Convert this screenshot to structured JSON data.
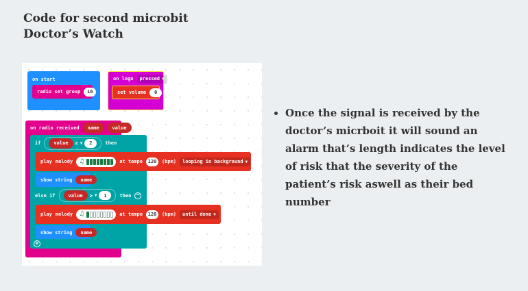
{
  "title": {
    "line1": "Code for second microbit",
    "line2": "Doctor’s Watch"
  },
  "blocks": {
    "on_start": {
      "label": "on start",
      "radio_label": "radio set group",
      "radio_value": "16"
    },
    "on_logo": {
      "label": "on logo",
      "event": "pressed",
      "set_volume_label": "set volume",
      "volume_value": "0"
    },
    "on_radio": {
      "label": "on radio received",
      "param1": "name",
      "param2": "value",
      "if_label": "if",
      "if_var": "value",
      "if_op": "≥",
      "if_value": "2",
      "then_label": "then",
      "play1": {
        "label": "play",
        "melody_label": "melody",
        "tempo_label": "at tempo",
        "tempo_value": "120",
        "bpm_label": "(bpm)",
        "mode": "looping in background",
        "filled_cells": 8,
        "total_cells": 8
      },
      "show1_label": "show string",
      "show1_value": "name",
      "elseif_label": "else if",
      "elseif_var": "value",
      "elseif_op": "≥",
      "elseif_value": "1",
      "then2_label": "then",
      "play2": {
        "label": "play",
        "melody_label": "melody",
        "tempo_label": "at tempo",
        "tempo_value": "120",
        "bpm_label": "(bpm)",
        "mode": "until done",
        "filled_cells": 1,
        "total_cells": 8
      },
      "show2_label": "show string",
      "show2_value": "name"
    }
  },
  "bullet_text": "Once the signal is received by the doctor’s micrboit it will sound an alarm that’s length indicates the level of risk that the severity of the patient’s risk aswell as their bed number",
  "colors": {
    "background": "#eceff1",
    "basic_blue": "#1e90ff",
    "radio_pink": "#e3008c",
    "logic_teal": "#00a4a6",
    "music_red": "#e63022",
    "input_magenta": "#d400d4",
    "highlight": "#f8d839"
  }
}
